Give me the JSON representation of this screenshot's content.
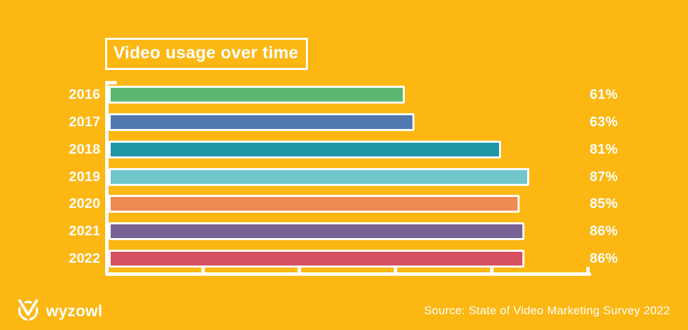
{
  "page": {
    "background_color": "#fcb713",
    "axis_color": "#ffffff",
    "text_color": "#ffffff"
  },
  "title_box": {
    "label": "Video usage over time"
  },
  "footer": {
    "logo_text": "wyzowl",
    "source": "Source: State of Video Marketing Survey 2022"
  },
  "chart_data": {
    "type": "bar",
    "orientation": "horizontal",
    "title": "Video usage over time",
    "categories": [
      "2016",
      "2017",
      "2018",
      "2019",
      "2020",
      "2021",
      "2022"
    ],
    "values": [
      61,
      63,
      81,
      87,
      85,
      86,
      86
    ],
    "value_labels": [
      "61%",
      "63%",
      "81%",
      "87%",
      "85%",
      "86%",
      "86%"
    ],
    "bar_colors": [
      "#5cb870",
      "#5179b0",
      "#1f97a5",
      "#6fc7cb",
      "#ef8a52",
      "#796295",
      "#d75062"
    ],
    "xlim": [
      0,
      100
    ],
    "x_ticks": [
      0,
      20,
      40,
      60,
      80,
      100
    ],
    "grid": false,
    "legend": false,
    "bar_border_color": "#ffffff",
    "label_color": "#ffffff"
  }
}
